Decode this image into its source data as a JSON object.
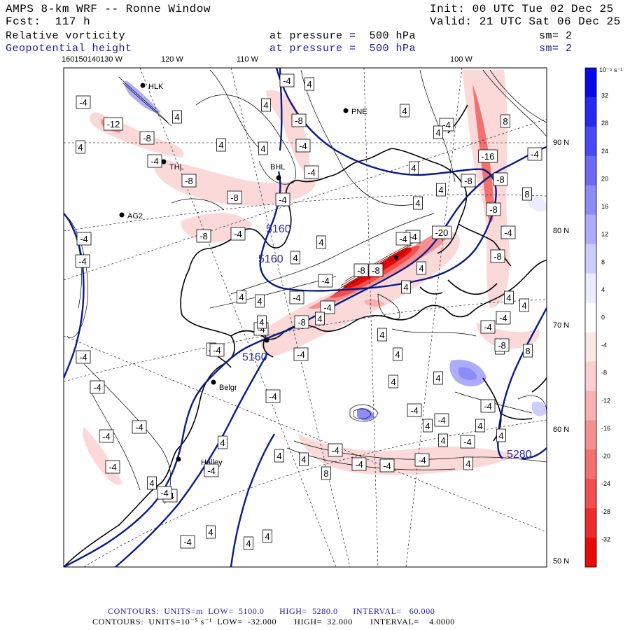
{
  "header": {
    "model": "AMPS 8-km WRF -- Ronne Window",
    "forecast": "Fcst:  117 h",
    "init": "Init: 00 UTC Tue 02 Dec 25",
    "valid": "Valid: 21 UTC Sat 06 Dec 25",
    "field1_name": "Relative vorticity",
    "field1_level": "at pressure =  500 hPa",
    "field1_sm": "sm= 2",
    "field2_name": "Geopotential height",
    "field2_level": "at pressure =  500 hPa",
    "field2_sm": "sm= 2"
  },
  "lon_labels": {
    "cluster": "160150140130 W",
    "w120": "120 W",
    "w110": "110 W",
    "w100": "100 W"
  },
  "lat_labels": [
    "90 N",
    "80 N",
    "70 N",
    "60 N",
    "50 N"
  ],
  "stations": {
    "hlk": "HLK",
    "pne": "PNE",
    "thl": "THL",
    "bhl": "BHL",
    "ag2": "AG2",
    "belgr": "Belgr",
    "halley": "Halley"
  },
  "height_contours": {
    "c1": "5160",
    "c2": "5160",
    "c3": "5160",
    "c4": "5280"
  },
  "contour_boxes": {
    "b01": "-4",
    "b02": "-12",
    "b03": "-8",
    "b04": "4",
    "b05": "4",
    "b06": "-4",
    "b07": "-8",
    "b08": "-8",
    "b09": "-4",
    "b10": "-4",
    "b11": "-4",
    "b12": "-4",
    "b13": "-4",
    "b14": "-8",
    "b15": "-4",
    "b16": "-8",
    "b17": "4",
    "b18": "4",
    "b19": "4",
    "b20": "4",
    "b21": "4",
    "b22": "-4",
    "b23": "-8",
    "b24": "-8",
    "b25": "-8",
    "b26": "-16",
    "b27": "-4",
    "b28": "8",
    "b29": "8",
    "b30": "-4",
    "b31": "-20",
    "b32": "-8",
    "b33": "-4",
    "b34": "-4",
    "b35": "-4",
    "b36": "4",
    "b37": "4",
    "b38": "4",
    "b39": "-8",
    "b40": "-8",
    "b41": "-4",
    "b42": "8",
    "b43": "4",
    "b44": "-4",
    "b45": "4",
    "b46": "4",
    "b47": "-4",
    "b48": "-4",
    "b49": "4",
    "b50": "-4",
    "b51": "4",
    "b52": "-4",
    "b53": "4",
    "b54": "-4",
    "b55": "-4",
    "b56": "-4",
    "b57": "4",
    "b58": "-4",
    "b59": "-4",
    "b60": "4",
    "b61": "-4",
    "b62": "-4",
    "b63": "4",
    "b64": "4",
    "b65": "-4",
    "b66": "-4",
    "b67": "-4",
    "b68": "4",
    "b69": "4",
    "b70": "4",
    "b71": "-4",
    "b72": "8",
    "b73": "-4",
    "b74": "-4",
    "b75": "4",
    "b76": "4",
    "b77": "8",
    "b78": "-4",
    "b79": "4",
    "b80": "4",
    "b81": "4",
    "b82": "-4",
    "b83": "-4",
    "b84": "4",
    "b85": "4",
    "b86": "-4",
    "b87": "4",
    "b88": "-4",
    "b89": "4",
    "b90": "4",
    "b91": "4",
    "b92": "4",
    "b93": "4",
    "b94": "-8",
    "b95": "-4",
    "b96": "4",
    "b97": "-4",
    "b98": "4",
    "b99": "-8"
  },
  "colorbar": {
    "unit": "10⁻⁵ s⁻¹",
    "labels": [
      "32",
      "28",
      "24",
      "20",
      "16",
      "12",
      "8",
      "4",
      "0",
      "-4",
      "-8",
      "-12",
      "-16",
      "-20",
      "-24",
      "-28",
      "-32"
    ],
    "colors": [
      "#0a0ae8",
      "#2a2aee",
      "#4a4af2",
      "#6a6af5",
      "#8c8cf7",
      "#acacfa",
      "#cccdfc",
      "#ececfe",
      "#ffffff",
      "#fde8e8",
      "#fbcfcf",
      "#f8b0b0",
      "#f59090",
      "#f27070",
      "#ef4f4f",
      "#eb2c2c",
      "#e60a0a"
    ]
  },
  "footer": {
    "line1": "CONTOURS:  UNITS=m  LOW=  5100.0      HIGH=  5280.0      INTERVAL=   60.000",
    "line2": "CONTOURS:  UNITS=10⁻⁵ s⁻¹  LOW=  -32.000       HIGH=  32.000       INTERVAL=    4.0000"
  },
  "colors": {
    "title_blue": "#1a1aa0",
    "height_contour": "#0a1a8a"
  }
}
